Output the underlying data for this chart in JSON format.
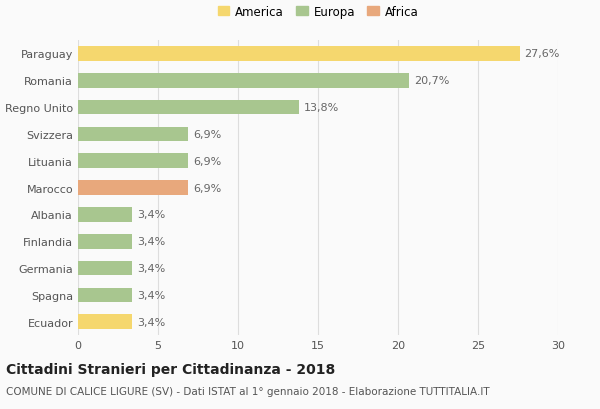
{
  "categories": [
    "Paraguay",
    "Romania",
    "Regno Unito",
    "Svizzera",
    "Lituania",
    "Marocco",
    "Albania",
    "Finlandia",
    "Germania",
    "Spagna",
    "Ecuador"
  ],
  "values": [
    27.6,
    20.7,
    13.8,
    6.9,
    6.9,
    6.9,
    3.4,
    3.4,
    3.4,
    3.4,
    3.4
  ],
  "labels": [
    "27,6%",
    "20,7%",
    "13,8%",
    "6,9%",
    "6,9%",
    "6,9%",
    "3,4%",
    "3,4%",
    "3,4%",
    "3,4%",
    "3,4%"
  ],
  "continents": [
    "America",
    "Europa",
    "Europa",
    "Europa",
    "Europa",
    "Africa",
    "Europa",
    "Europa",
    "Europa",
    "Europa",
    "America"
  ],
  "colors": {
    "America": "#F5D76E",
    "Europa": "#A8C68F",
    "Africa": "#E8A87C"
  },
  "legend_items": [
    "America",
    "Europa",
    "Africa"
  ],
  "legend_colors": [
    "#F5D76E",
    "#A8C68F",
    "#E8A87C"
  ],
  "xlim": [
    0,
    30
  ],
  "xticks": [
    0,
    5,
    10,
    15,
    20,
    25,
    30
  ],
  "title_main": "Cittadini Stranieri per Cittadinanza - 2018",
  "title_sub": "COMUNE DI CALICE LIGURE (SV) - Dati ISTAT al 1° gennaio 2018 - Elaborazione TUTTITALIA.IT",
  "background_color": "#FAFAFA",
  "grid_color": "#DDDDDD",
  "bar_height": 0.55,
  "label_fontsize": 8,
  "tick_fontsize": 8,
  "title_fontsize": 10,
  "subtitle_fontsize": 7.5
}
